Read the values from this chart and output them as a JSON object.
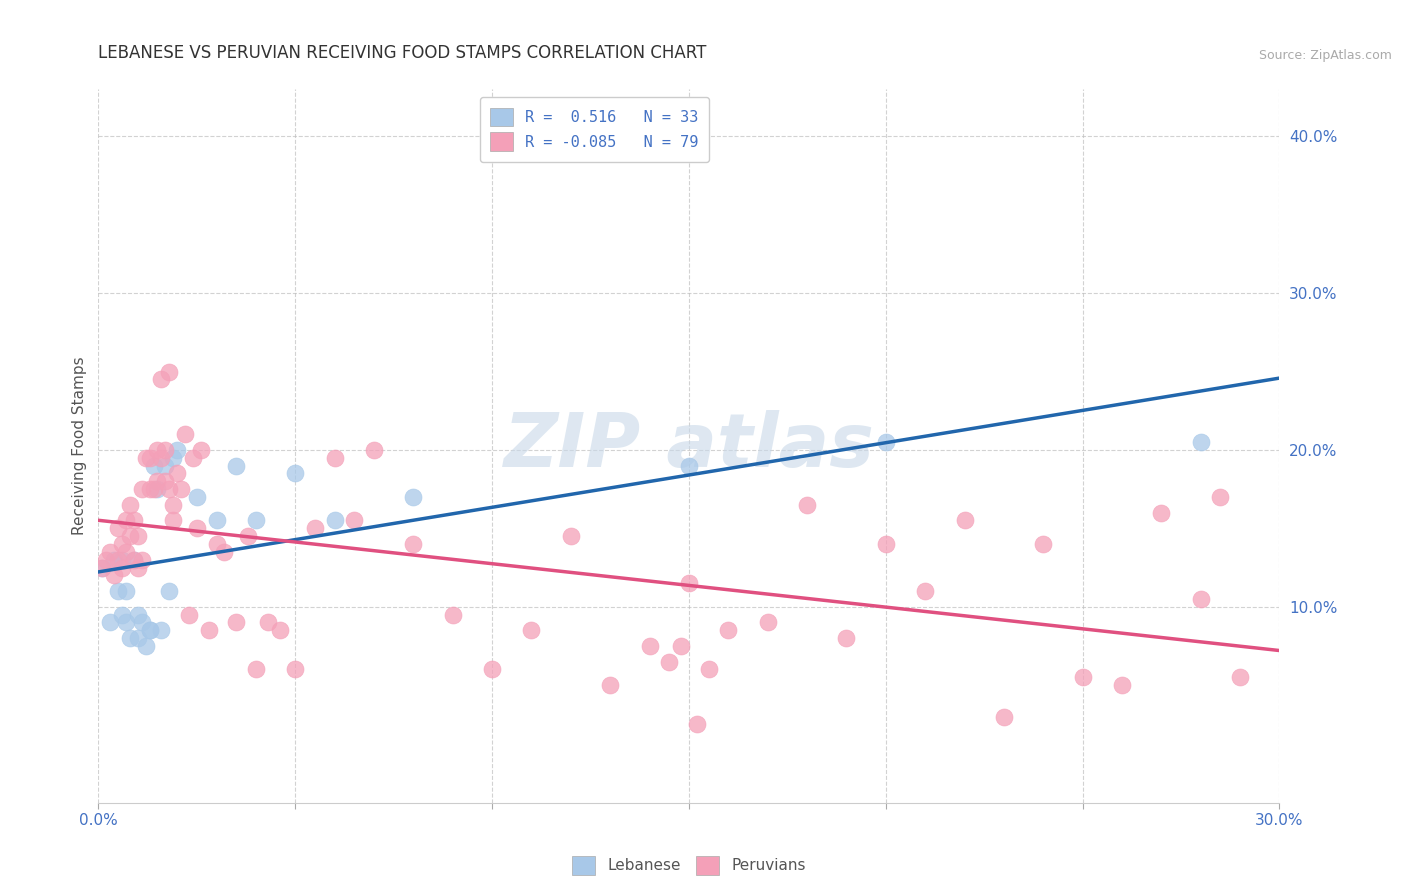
{
  "title": "LEBANESE VS PERUVIAN RECEIVING FOOD STAMPS CORRELATION CHART",
  "source": "Source: ZipAtlas.com",
  "ylabel": "Receiving Food Stamps",
  "xlim": [
    0.0,
    0.3
  ],
  "ylim": [
    -0.025,
    0.43
  ],
  "xticks": [
    0.0,
    0.05,
    0.1,
    0.15,
    0.2,
    0.25,
    0.3
  ],
  "yticks": [
    0.1,
    0.2,
    0.3,
    0.4
  ],
  "xtick_labels_show": [
    "0.0%",
    "30.0%"
  ],
  "xtick_labels_show_pos": [
    0.0,
    0.3
  ],
  "ytick_labels": [
    "10.0%",
    "20.0%",
    "30.0%",
    "40.0%"
  ],
  "legend_label1": "Lebanese",
  "legend_label2": "Peruvians",
  "blue_color": "#a8c8e8",
  "pink_color": "#f4a0b8",
  "blue_line_color": "#2166ac",
  "pink_line_color": "#e05080",
  "title_fontsize": 12,
  "axis_fontsize": 11,
  "tick_fontsize": 11,
  "blue_scatter_x": [
    0.001,
    0.003,
    0.004,
    0.005,
    0.006,
    0.006,
    0.007,
    0.007,
    0.008,
    0.009,
    0.01,
    0.01,
    0.011,
    0.012,
    0.013,
    0.013,
    0.014,
    0.015,
    0.016,
    0.017,
    0.018,
    0.019,
    0.02,
    0.025,
    0.03,
    0.035,
    0.04,
    0.05,
    0.06,
    0.08,
    0.15,
    0.2,
    0.28
  ],
  "blue_scatter_y": [
    0.125,
    0.09,
    0.13,
    0.11,
    0.13,
    0.095,
    0.11,
    0.09,
    0.08,
    0.13,
    0.095,
    0.08,
    0.09,
    0.075,
    0.085,
    0.085,
    0.19,
    0.175,
    0.085,
    0.19,
    0.11,
    0.195,
    0.2,
    0.17,
    0.155,
    0.19,
    0.155,
    0.185,
    0.155,
    0.17,
    0.19,
    0.205,
    0.205
  ],
  "pink_scatter_x": [
    0.001,
    0.002,
    0.003,
    0.004,
    0.005,
    0.005,
    0.006,
    0.006,
    0.007,
    0.007,
    0.008,
    0.008,
    0.009,
    0.009,
    0.01,
    0.01,
    0.011,
    0.011,
    0.012,
    0.013,
    0.013,
    0.014,
    0.015,
    0.015,
    0.016,
    0.016,
    0.017,
    0.017,
    0.018,
    0.018,
    0.019,
    0.019,
    0.02,
    0.021,
    0.022,
    0.023,
    0.024,
    0.025,
    0.026,
    0.028,
    0.03,
    0.032,
    0.035,
    0.038,
    0.04,
    0.043,
    0.046,
    0.05,
    0.055,
    0.06,
    0.065,
    0.07,
    0.08,
    0.09,
    0.1,
    0.11,
    0.12,
    0.13,
    0.14,
    0.15,
    0.16,
    0.17,
    0.18,
    0.19,
    0.2,
    0.21,
    0.22,
    0.23,
    0.24,
    0.25,
    0.26,
    0.27,
    0.28,
    0.285,
    0.29,
    0.145,
    0.148,
    0.152,
    0.155
  ],
  "pink_scatter_y": [
    0.125,
    0.13,
    0.135,
    0.12,
    0.13,
    0.15,
    0.125,
    0.14,
    0.135,
    0.155,
    0.145,
    0.165,
    0.13,
    0.155,
    0.125,
    0.145,
    0.13,
    0.175,
    0.195,
    0.175,
    0.195,
    0.175,
    0.2,
    0.18,
    0.195,
    0.245,
    0.2,
    0.18,
    0.25,
    0.175,
    0.155,
    0.165,
    0.185,
    0.175,
    0.21,
    0.095,
    0.195,
    0.15,
    0.2,
    0.085,
    0.14,
    0.135,
    0.09,
    0.145,
    0.06,
    0.09,
    0.085,
    0.06,
    0.15,
    0.195,
    0.155,
    0.2,
    0.14,
    0.095,
    0.06,
    0.085,
    0.145,
    0.05,
    0.075,
    0.115,
    0.085,
    0.09,
    0.165,
    0.08,
    0.14,
    0.11,
    0.155,
    0.03,
    0.14,
    0.055,
    0.05,
    0.16,
    0.105,
    0.17,
    0.055,
    0.065,
    0.075,
    0.025,
    0.06
  ]
}
